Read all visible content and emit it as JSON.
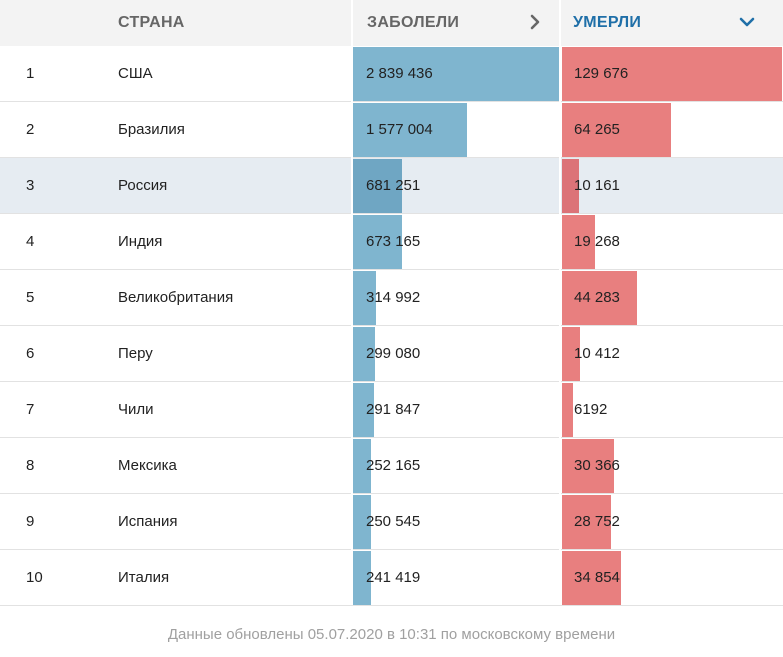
{
  "header": {
    "country_label": "СТРАНА",
    "cases_label": "ЗАБОЛЕЛИ",
    "deaths_label": "УМЕРЛИ",
    "cases_icon": "chevron-right-icon",
    "deaths_icon": "chevron-down-icon"
  },
  "colors": {
    "cases_bar": "#7fb5cf",
    "deaths_bar": "#e87f7f",
    "active_header": "#1f6fa8",
    "highlight_row": "#e6ecf2"
  },
  "rows": [
    {
      "rank": "1",
      "country": "США",
      "cases": "2 839 436",
      "deaths": "129 676",
      "cases_value": 2839436,
      "deaths_value": 129676
    },
    {
      "rank": "2",
      "country": "Бразилия",
      "cases": "1 577 004",
      "deaths": "64 265",
      "cases_value": 1577004,
      "deaths_value": 64265
    },
    {
      "rank": "3",
      "country": "Россия",
      "cases": "681 251",
      "deaths": "10 161",
      "cases_value": 681251,
      "deaths_value": 10161,
      "highlighted": true
    },
    {
      "rank": "4",
      "country": "Индия",
      "cases": "673 165",
      "deaths": "19 268",
      "cases_value": 673165,
      "deaths_value": 19268
    },
    {
      "rank": "5",
      "country": "Великобритания",
      "cases": "314 992",
      "deaths": "44 283",
      "cases_value": 314992,
      "deaths_value": 44283
    },
    {
      "rank": "6",
      "country": "Перу",
      "cases": "299 080",
      "deaths": "10 412",
      "cases_value": 299080,
      "deaths_value": 10412
    },
    {
      "rank": "7",
      "country": "Чили",
      "cases": "291 847",
      "deaths": "6192",
      "cases_value": 291847,
      "deaths_value": 6192
    },
    {
      "rank": "8",
      "country": "Мексика",
      "cases": "252 165",
      "deaths": "30 366",
      "cases_value": 252165,
      "deaths_value": 30366
    },
    {
      "rank": "9",
      "country": "Испания",
      "cases": "250 545",
      "deaths": "28 752",
      "cases_value": 250545,
      "deaths_value": 28752
    },
    {
      "rank": "10",
      "country": "Италия",
      "cases": "241 419",
      "deaths": "34 854",
      "cases_value": 241419,
      "deaths_value": 34854
    }
  ],
  "footer": {
    "text": "Данные обновлены 05.07.2020 в 10:31 по московскому времени"
  }
}
